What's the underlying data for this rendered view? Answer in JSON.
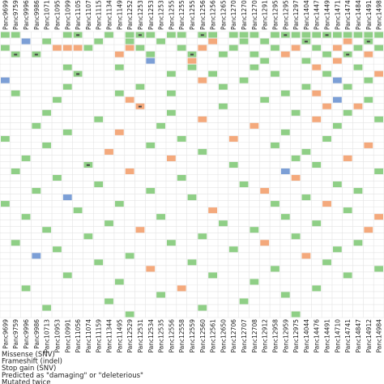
{
  "samples": [
    "Panc9699",
    "Panc9759",
    "Panc9996",
    "Panc9986",
    "Panc10713",
    "Panc10953",
    "Panc10991",
    "Panc11056",
    "Panc11074",
    "Panc11159",
    "Panc11344",
    "Panc11495",
    "Panc12529",
    "Panc12531",
    "Panc12534",
    "Panc12535",
    "Panc12556",
    "Panc12558",
    "Panc12559",
    "Panc12560",
    "Panc12561",
    "Panc12650",
    "Panc12706",
    "Panc12707",
    "Panc12708",
    "Panc12912",
    "Panc12958",
    "Panc12959",
    "Panc12975",
    "Panc14044",
    "Panc14476",
    "Panc14491",
    "Panc14710",
    "Panc14741",
    "Panc14847",
    "Panc14912",
    "Panc14984"
  ],
  "genes": [
    null,
    null,
    null,
    null,
    null,
    null,
    null,
    null,
    null,
    null,
    null,
    null,
    null,
    null,
    null,
    null,
    null,
    null,
    null,
    null,
    null,
    null,
    null,
    null,
    null,
    null,
    null,
    null,
    null,
    null,
    null,
    null,
    null,
    null,
    null,
    null,
    null,
    null,
    null,
    null,
    null,
    null,
    null,
    null
  ],
  "kinds": [
    {
      "key": "m",
      "name": "Missense (SNV)",
      "color": "#8fcf86"
    },
    {
      "key": "f",
      "name": "Frameshift (indel)",
      "color": "#f4a97c"
    },
    {
      "key": "s",
      "name": "Stop gain (SNV)",
      "color": "#7c9fd6"
    }
  ],
  "marks": [
    {
      "name": "Predicted as \"damaging\" or \"deleterious\""
    },
    {
      "name": "Mutated twice"
    }
  ],
  "cells": [
    [
      0,
      0,
      "m",
      0
    ],
    [
      0,
      1,
      "m",
      0
    ],
    [
      0,
      6,
      "m",
      0
    ],
    [
      0,
      7,
      "m",
      1
    ],
    [
      0,
      10,
      "m",
      0
    ],
    [
      0,
      12,
      "m",
      0
    ],
    [
      0,
      13,
      "m",
      1
    ],
    [
      0,
      14,
      "m",
      0
    ],
    [
      0,
      16,
      "m",
      0
    ],
    [
      0,
      17,
      "m",
      0
    ],
    [
      0,
      19,
      "m",
      1
    ],
    [
      0,
      20,
      "m",
      0
    ],
    [
      0,
      22,
      "m",
      0
    ],
    [
      0,
      23,
      "m",
      0
    ],
    [
      0,
      24,
      "m",
      0
    ],
    [
      0,
      26,
      "m",
      0
    ],
    [
      0,
      27,
      "m",
      1
    ],
    [
      0,
      28,
      "m",
      0
    ],
    [
      0,
      29,
      "m",
      0
    ],
    [
      0,
      30,
      "m",
      0
    ],
    [
      0,
      31,
      "m",
      1
    ],
    [
      0,
      32,
      "m",
      0
    ],
    [
      0,
      33,
      "m",
      0
    ],
    [
      0,
      34,
      "m",
      0
    ],
    [
      0,
      35,
      "m",
      0
    ],
    [
      0,
      36,
      "m",
      0
    ],
    [
      1,
      2,
      "s",
      0
    ],
    [
      1,
      4,
      "m",
      0
    ],
    [
      1,
      9,
      "m",
      0
    ],
    [
      1,
      12,
      "m",
      0
    ],
    [
      1,
      15,
      "m",
      0
    ],
    [
      1,
      20,
      "f",
      0
    ],
    [
      1,
      23,
      "m",
      0
    ],
    [
      1,
      25,
      "m",
      0
    ],
    [
      1,
      29,
      "m",
      1
    ],
    [
      1,
      33,
      "f",
      0
    ],
    [
      1,
      35,
      "m",
      1
    ],
    [
      2,
      0,
      "m",
      0
    ],
    [
      2,
      5,
      "f",
      0
    ],
    [
      2,
      6,
      "f",
      0
    ],
    [
      2,
      7,
      "f",
      0
    ],
    [
      2,
      8,
      "m",
      0
    ],
    [
      2,
      12,
      "f",
      0
    ],
    [
      2,
      13,
      "m",
      0
    ],
    [
      2,
      17,
      "m",
      0
    ],
    [
      2,
      19,
      "f",
      0
    ],
    [
      2,
      22,
      "m",
      0
    ],
    [
      2,
      26,
      "m",
      0
    ],
    [
      2,
      28,
      "f",
      0
    ],
    [
      2,
      30,
      "m",
      0
    ],
    [
      2,
      32,
      "f",
      0
    ],
    [
      2,
      34,
      "m",
      0
    ],
    [
      2,
      36,
      "m",
      0
    ],
    [
      3,
      1,
      "m",
      1
    ],
    [
      3,
      3,
      "m",
      1
    ],
    [
      3,
      11,
      "f",
      0
    ],
    [
      3,
      14,
      "m",
      0
    ],
    [
      3,
      18,
      "m",
      1
    ],
    [
      3,
      21,
      "m",
      0
    ],
    [
      3,
      24,
      "m",
      0
    ],
    [
      3,
      27,
      "f",
      0
    ],
    [
      3,
      31,
      "m",
      0
    ],
    [
      3,
      33,
      "m",
      1
    ],
    [
      3,
      35,
      "f",
      0
    ],
    [
      4,
      14,
      "s",
      0
    ],
    [
      4,
      18,
      "f",
      0
    ],
    [
      4,
      25,
      "m",
      0
    ],
    [
      4,
      29,
      "m",
      0
    ],
    [
      4,
      32,
      "f",
      0
    ],
    [
      5,
      6,
      "m",
      0
    ],
    [
      5,
      11,
      "m",
      0
    ],
    [
      5,
      18,
      "m",
      0
    ],
    [
      5,
      24,
      "m",
      0
    ],
    [
      5,
      30,
      "f",
      0
    ],
    [
      5,
      34,
      "m",
      0
    ],
    [
      6,
      7,
      "m",
      1
    ],
    [
      6,
      16,
      "m",
      0
    ],
    [
      6,
      20,
      "m",
      0
    ],
    [
      6,
      26,
      "m",
      0
    ],
    [
      6,
      31,
      "m",
      0
    ],
    [
      6,
      36,
      "f",
      0
    ],
    [
      7,
      0,
      "s",
      0
    ],
    [
      7,
      19,
      "f",
      0
    ],
    [
      7,
      23,
      "m",
      0
    ],
    [
      7,
      32,
      "s",
      0
    ],
    [
      7,
      35,
      "m",
      0
    ],
    [
      8,
      6,
      "m",
      0
    ],
    [
      8,
      13,
      "m",
      0
    ],
    [
      8,
      21,
      "m",
      0
    ],
    [
      8,
      29,
      "m",
      0
    ],
    [
      8,
      33,
      "m",
      0
    ],
    [
      9,
      1,
      "m",
      0
    ],
    [
      9,
      11,
      "m",
      0
    ],
    [
      9,
      16,
      "m",
      0
    ],
    [
      9,
      27,
      "m",
      0
    ],
    [
      9,
      30,
      "f",
      0
    ],
    [
      10,
      5,
      "m",
      0
    ],
    [
      10,
      12,
      "f",
      0
    ],
    [
      10,
      25,
      "m",
      0
    ],
    [
      10,
      32,
      "s",
      0
    ],
    [
      10,
      35,
      "m",
      0
    ],
    [
      11,
      13,
      "f",
      1
    ],
    [
      11,
      21,
      "m",
      0
    ],
    [
      11,
      31,
      "f",
      0
    ],
    [
      11,
      34,
      "f",
      0
    ],
    [
      12,
      4,
      "m",
      0
    ],
    [
      12,
      16,
      "m",
      0
    ],
    [
      12,
      28,
      "m",
      0
    ],
    [
      12,
      33,
      "m",
      0
    ],
    [
      13,
      9,
      "m",
      0
    ],
    [
      13,
      19,
      "f",
      0
    ],
    [
      13,
      30,
      "f",
      0
    ],
    [
      13,
      36,
      "m",
      0
    ],
    [
      14,
      3,
      "m",
      0
    ],
    [
      14,
      15,
      "m",
      0
    ],
    [
      14,
      24,
      "f",
      0
    ],
    [
      14,
      32,
      "m",
      0
    ],
    [
      15,
      6,
      "m",
      0
    ],
    [
      15,
      11,
      "f",
      0
    ],
    [
      15,
      27,
      "m",
      0
    ],
    [
      16,
      0,
      "m",
      0
    ],
    [
      16,
      17,
      "m",
      0
    ],
    [
      16,
      22,
      "f",
      0
    ],
    [
      16,
      31,
      "m",
      0
    ],
    [
      17,
      4,
      "m",
      0
    ],
    [
      17,
      14,
      "m",
      0
    ],
    [
      17,
      26,
      "m",
      0
    ],
    [
      17,
      35,
      "f",
      0
    ],
    [
      18,
      10,
      "f",
      0
    ],
    [
      18,
      19,
      "m",
      0
    ],
    [
      18,
      29,
      "m",
      0
    ],
    [
      19,
      2,
      "m",
      0
    ],
    [
      19,
      16,
      "f",
      0
    ],
    [
      19,
      28,
      "m",
      0
    ],
    [
      19,
      33,
      "f",
      0
    ],
    [
      20,
      8,
      "m",
      1
    ],
    [
      20,
      22,
      "m",
      0
    ],
    [
      20,
      30,
      "m",
      0
    ],
    [
      21,
      1,
      "m",
      0
    ],
    [
      21,
      12,
      "f",
      0
    ],
    [
      21,
      27,
      "s",
      0
    ],
    [
      21,
      36,
      "m",
      0
    ],
    [
      22,
      5,
      "m",
      0
    ],
    [
      22,
      17,
      "m",
      0
    ],
    [
      22,
      28,
      "f",
      0
    ],
    [
      23,
      9,
      "m",
      0
    ],
    [
      23,
      23,
      "m",
      0
    ],
    [
      23,
      32,
      "m",
      0
    ],
    [
      24,
      3,
      "m",
      0
    ],
    [
      24,
      14,
      "m",
      0
    ],
    [
      24,
      25,
      "f",
      0
    ],
    [
      24,
      34,
      "m",
      0
    ],
    [
      25,
      6,
      "s",
      0
    ],
    [
      25,
      18,
      "m",
      0
    ],
    [
      25,
      29,
      "m",
      0
    ],
    [
      26,
      0,
      "m",
      0
    ],
    [
      26,
      11,
      "m",
      0
    ],
    [
      26,
      26,
      "m",
      0
    ],
    [
      26,
      31,
      "f",
      0
    ],
    [
      27,
      7,
      "m",
      0
    ],
    [
      27,
      20,
      "f",
      0
    ],
    [
      27,
      33,
      "m",
      0
    ],
    [
      28,
      2,
      "m",
      0
    ],
    [
      28,
      15,
      "m",
      0
    ],
    [
      28,
      27,
      "m",
      0
    ],
    [
      28,
      36,
      "f",
      0
    ],
    [
      29,
      10,
      "m",
      0
    ],
    [
      29,
      21,
      "m",
      0
    ],
    [
      29,
      30,
      "m",
      0
    ],
    [
      30,
      4,
      "m",
      0
    ],
    [
      30,
      13,
      "f",
      0
    ],
    [
      30,
      24,
      "m",
      0
    ],
    [
      30,
      35,
      "f",
      0
    ],
    [
      31,
      8,
      "m",
      0
    ],
    [
      31,
      19,
      "m",
      0
    ],
    [
      31,
      28,
      "m",
      0
    ],
    [
      32,
      1,
      "m",
      0
    ],
    [
      32,
      16,
      "m",
      0
    ],
    [
      32,
      25,
      "f",
      0
    ],
    [
      32,
      34,
      "m",
      0
    ],
    [
      33,
      5,
      "m",
      0
    ],
    [
      33,
      22,
      "m",
      0
    ],
    [
      33,
      32,
      "m",
      0
    ],
    [
      34,
      3,
      "s",
      0
    ],
    [
      34,
      12,
      "m",
      0
    ],
    [
      34,
      29,
      "f",
      0
    ],
    [
      35,
      9,
      "m",
      0
    ],
    [
      35,
      18,
      "m",
      0
    ],
    [
      35,
      31,
      "m",
      0
    ],
    [
      36,
      14,
      "f",
      0
    ],
    [
      36,
      26,
      "m",
      0
    ],
    [
      36,
      36,
      "m",
      0
    ],
    [
      37,
      6,
      "m",
      0
    ],
    [
      37,
      20,
      "m",
      0
    ],
    [
      37,
      33,
      "m",
      0
    ],
    [
      38,
      11,
      "m",
      0
    ],
    [
      38,
      24,
      "m",
      0
    ],
    [
      39,
      2,
      "m",
      0
    ],
    [
      39,
      17,
      "f",
      0
    ],
    [
      39,
      30,
      "m",
      0
    ],
    [
      40,
      15,
      "m",
      0
    ],
    [
      40,
      27,
      "m",
      0
    ],
    [
      41,
      10,
      "m",
      0
    ],
    [
      41,
      23,
      "m",
      0
    ],
    [
      42,
      4,
      "m",
      0
    ],
    [
      42,
      19,
      "m",
      0
    ],
    [
      43,
      12,
      "m",
      0
    ],
    [
      43,
      28,
      "m",
      0
    ]
  ]
}
